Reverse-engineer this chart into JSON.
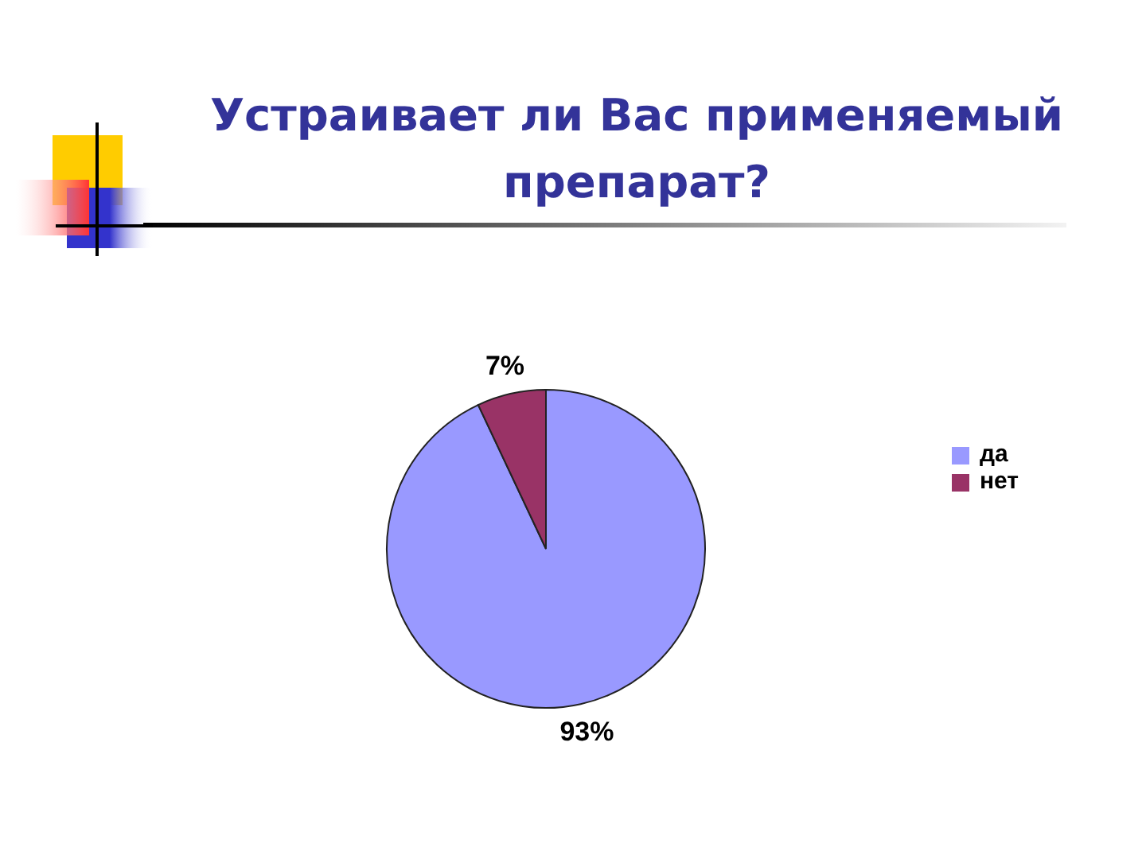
{
  "chart_data": {
    "type": "pie",
    "title": "Устраивает ли Вас применяемый препарат?",
    "categories": [
      "да",
      "нет"
    ],
    "values": [
      93,
      7
    ],
    "colors": [
      "#9999ff",
      "#993366"
    ],
    "value_labels": [
      "93%",
      "7%"
    ],
    "legend": "right"
  }
}
